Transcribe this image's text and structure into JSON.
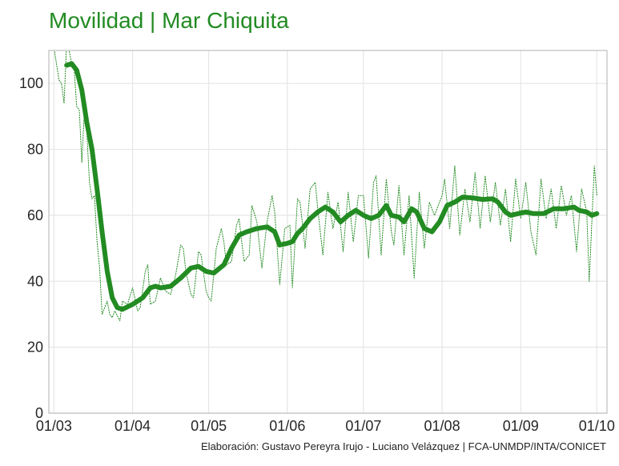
{
  "title": "Movilidad | Mar Chiquita",
  "caption": "Elaboración: Gustavo Pereyra Irujo - Luciano Velázquez | FCA-UNMDP/INTA/CONICET",
  "colors": {
    "line": "#228B22",
    "grid": "#e6e6e6",
    "frame": "#bdbdbd"
  },
  "chart_data": {
    "type": "line",
    "title": "Movilidad | Mar Chiquita",
    "xlabel": "",
    "ylabel": "",
    "grid": true,
    "xlim": [
      "2020-02-28",
      "2020-10-05"
    ],
    "ylim": [
      0,
      110
    ],
    "x_ticks": [
      {
        "x": "2020-03-01",
        "label": "01/03"
      },
      {
        "x": "2020-04-01",
        "label": "01/04"
      },
      {
        "x": "2020-05-01",
        "label": "01/05"
      },
      {
        "x": "2020-06-01",
        "label": "01/06"
      },
      {
        "x": "2020-07-01",
        "label": "01/07"
      },
      {
        "x": "2020-08-01",
        "label": "01/08"
      },
      {
        "x": "2020-09-01",
        "label": "01/09"
      },
      {
        "x": "2020-10-01",
        "label": "01/10"
      }
    ],
    "y_ticks": [
      0,
      20,
      40,
      60,
      80,
      100
    ],
    "series": [
      {
        "style": "thick-solid",
        "points": [
          [
            "2020-03-06",
            105.5
          ],
          [
            "2020-03-08",
            106
          ],
          [
            "2020-03-10",
            104
          ],
          [
            "2020-03-12",
            98
          ],
          [
            "2020-03-14",
            88
          ],
          [
            "2020-03-16",
            80
          ],
          [
            "2020-03-18",
            68
          ],
          [
            "2020-03-20",
            55
          ],
          [
            "2020-03-22",
            43
          ],
          [
            "2020-03-24",
            35
          ],
          [
            "2020-03-26",
            32
          ],
          [
            "2020-03-28",
            31.5
          ],
          [
            "2020-04-01",
            33
          ],
          [
            "2020-04-05",
            35
          ],
          [
            "2020-04-08",
            38
          ],
          [
            "2020-04-10",
            38.5
          ],
          [
            "2020-04-12",
            38
          ],
          [
            "2020-04-16",
            38.5
          ],
          [
            "2020-04-20",
            41
          ],
          [
            "2020-04-24",
            44
          ],
          [
            "2020-04-27",
            44.5
          ],
          [
            "2020-04-30",
            43
          ],
          [
            "2020-05-03",
            42.5
          ],
          [
            "2020-05-07",
            45
          ],
          [
            "2020-05-10",
            50
          ],
          [
            "2020-05-13",
            54
          ],
          [
            "2020-05-16",
            55
          ],
          [
            "2020-05-20",
            56
          ],
          [
            "2020-05-24",
            56.5
          ],
          [
            "2020-05-27",
            55
          ],
          [
            "2020-05-29",
            51
          ],
          [
            "2020-06-01",
            51.5
          ],
          [
            "2020-06-03",
            52
          ],
          [
            "2020-06-05",
            54.5
          ],
          [
            "2020-06-07",
            56
          ],
          [
            "2020-06-10",
            59
          ],
          [
            "2020-06-13",
            61
          ],
          [
            "2020-06-16",
            62.5
          ],
          [
            "2020-06-19",
            61
          ],
          [
            "2020-06-22",
            58
          ],
          [
            "2020-06-25",
            60
          ],
          [
            "2020-06-28",
            61.5
          ],
          [
            "2020-07-01",
            60
          ],
          [
            "2020-07-04",
            59
          ],
          [
            "2020-07-07",
            60
          ],
          [
            "2020-07-10",
            63
          ],
          [
            "2020-07-12",
            60
          ],
          [
            "2020-07-15",
            59.5
          ],
          [
            "2020-07-17",
            58
          ],
          [
            "2020-07-20",
            62
          ],
          [
            "2020-07-22",
            61
          ],
          [
            "2020-07-25",
            56
          ],
          [
            "2020-07-28",
            55
          ],
          [
            "2020-07-31",
            58
          ],
          [
            "2020-08-03",
            63
          ],
          [
            "2020-08-06",
            64
          ],
          [
            "2020-08-09",
            65.5
          ],
          [
            "2020-08-13",
            65.3
          ],
          [
            "2020-08-17",
            64.8
          ],
          [
            "2020-08-21",
            65
          ],
          [
            "2020-08-23",
            64
          ],
          [
            "2020-08-26",
            61
          ],
          [
            "2020-08-28",
            60
          ],
          [
            "2020-08-31",
            60.5
          ],
          [
            "2020-09-03",
            61
          ],
          [
            "2020-09-06",
            60.5
          ],
          [
            "2020-09-10",
            60.5
          ],
          [
            "2020-09-14",
            62
          ],
          [
            "2020-09-18",
            62
          ],
          [
            "2020-09-22",
            62.5
          ],
          [
            "2020-09-24",
            61.5
          ],
          [
            "2020-09-27",
            61
          ],
          [
            "2020-09-29",
            60
          ],
          [
            "2020-10-01",
            60.5
          ]
        ]
      },
      {
        "style": "thin-dotted",
        "points": [
          [
            "2020-03-01",
            111
          ],
          [
            "2020-03-03",
            101
          ],
          [
            "2020-03-04",
            100
          ],
          [
            "2020-03-05",
            94
          ],
          [
            "2020-03-06",
            112
          ],
          [
            "2020-03-07",
            110
          ],
          [
            "2020-03-08",
            106
          ],
          [
            "2020-03-09",
            104
          ],
          [
            "2020-03-10",
            93
          ],
          [
            "2020-03-11",
            92
          ],
          [
            "2020-03-12",
            76
          ],
          [
            "2020-03-13",
            92
          ],
          [
            "2020-03-14",
            85
          ],
          [
            "2020-03-15",
            70
          ],
          [
            "2020-03-16",
            65
          ],
          [
            "2020-03-17",
            66
          ],
          [
            "2020-03-18",
            52
          ],
          [
            "2020-03-19",
            44
          ],
          [
            "2020-03-20",
            30
          ],
          [
            "2020-03-21",
            32
          ],
          [
            "2020-03-22",
            34
          ],
          [
            "2020-03-23",
            30
          ],
          [
            "2020-03-24",
            29
          ],
          [
            "2020-03-25",
            31
          ],
          [
            "2020-03-27",
            28
          ],
          [
            "2020-03-28",
            34
          ],
          [
            "2020-03-30",
            33
          ],
          [
            "2020-04-01",
            38
          ],
          [
            "2020-04-03",
            31
          ],
          [
            "2020-04-04",
            32
          ],
          [
            "2020-04-06",
            43
          ],
          [
            "2020-04-07",
            45
          ],
          [
            "2020-04-08",
            33
          ],
          [
            "2020-04-10",
            34
          ],
          [
            "2020-04-12",
            41
          ],
          [
            "2020-04-14",
            37
          ],
          [
            "2020-04-16",
            36
          ],
          [
            "2020-04-18",
            42
          ],
          [
            "2020-04-20",
            51
          ],
          [
            "2020-04-21",
            50
          ],
          [
            "2020-04-22",
            43
          ],
          [
            "2020-04-24",
            36
          ],
          [
            "2020-04-25",
            35
          ],
          [
            "2020-04-27",
            49
          ],
          [
            "2020-04-28",
            48
          ],
          [
            "2020-04-30",
            37
          ],
          [
            "2020-05-01",
            35
          ],
          [
            "2020-05-02",
            34
          ],
          [
            "2020-05-04",
            50
          ],
          [
            "2020-05-06",
            56
          ],
          [
            "2020-05-07",
            52
          ],
          [
            "2020-05-08",
            45
          ],
          [
            "2020-05-10",
            46
          ],
          [
            "2020-05-12",
            57
          ],
          [
            "2020-05-13",
            59
          ],
          [
            "2020-05-14",
            52
          ],
          [
            "2020-05-15",
            46
          ],
          [
            "2020-05-17",
            48
          ],
          [
            "2020-05-18",
            63
          ],
          [
            "2020-05-20",
            58
          ],
          [
            "2020-05-22",
            44
          ],
          [
            "2020-05-24",
            58
          ],
          [
            "2020-05-26",
            66
          ],
          [
            "2020-05-27",
            61
          ],
          [
            "2020-05-29",
            39
          ],
          [
            "2020-05-31",
            56
          ],
          [
            "2020-06-02",
            57
          ],
          [
            "2020-06-03",
            38
          ],
          [
            "2020-06-05",
            65
          ],
          [
            "2020-06-06",
            64
          ],
          [
            "2020-06-08",
            50
          ],
          [
            "2020-06-10",
            68
          ],
          [
            "2020-06-12",
            70
          ],
          [
            "2020-06-13",
            62
          ],
          [
            "2020-06-15",
            48
          ],
          [
            "2020-06-17",
            67
          ],
          [
            "2020-06-19",
            56
          ],
          [
            "2020-06-21",
            64
          ],
          [
            "2020-06-23",
            49
          ],
          [
            "2020-06-25",
            67
          ],
          [
            "2020-06-27",
            52
          ],
          [
            "2020-06-29",
            66
          ],
          [
            "2020-07-01",
            66
          ],
          [
            "2020-07-03",
            47
          ],
          [
            "2020-07-05",
            70
          ],
          [
            "2020-07-06",
            72
          ],
          [
            "2020-07-08",
            48
          ],
          [
            "2020-07-10",
            71
          ],
          [
            "2020-07-12",
            55
          ],
          [
            "2020-07-13",
            51
          ],
          [
            "2020-07-15",
            69
          ],
          [
            "2020-07-17",
            48
          ],
          [
            "2020-07-19",
            66
          ],
          [
            "2020-07-21",
            41
          ],
          [
            "2020-07-23",
            67
          ],
          [
            "2020-07-25",
            50
          ],
          [
            "2020-07-27",
            64
          ],
          [
            "2020-07-29",
            60
          ],
          [
            "2020-08-01",
            66
          ],
          [
            "2020-08-02",
            71
          ],
          [
            "2020-08-04",
            56
          ],
          [
            "2020-08-06",
            75
          ],
          [
            "2020-08-08",
            54
          ],
          [
            "2020-08-10",
            68
          ],
          [
            "2020-08-12",
            58
          ],
          [
            "2020-08-14",
            73
          ],
          [
            "2020-08-16",
            56
          ],
          [
            "2020-08-18",
            72
          ],
          [
            "2020-08-20",
            58
          ],
          [
            "2020-08-22",
            70
          ],
          [
            "2020-08-24",
            57
          ],
          [
            "2020-08-26",
            68
          ],
          [
            "2020-08-28",
            52
          ],
          [
            "2020-08-30",
            71
          ],
          [
            "2020-09-01",
            59
          ],
          [
            "2020-09-03",
            70
          ],
          [
            "2020-09-05",
            55
          ],
          [
            "2020-09-07",
            48
          ],
          [
            "2020-09-09",
            71
          ],
          [
            "2020-09-11",
            59
          ],
          [
            "2020-09-13",
            68
          ],
          [
            "2020-09-15",
            56
          ],
          [
            "2020-09-17",
            69
          ],
          [
            "2020-09-19",
            60
          ],
          [
            "2020-09-21",
            66
          ],
          [
            "2020-09-23",
            49
          ],
          [
            "2020-09-25",
            68
          ],
          [
            "2020-09-27",
            61
          ],
          [
            "2020-09-28",
            40
          ],
          [
            "2020-09-30",
            75
          ],
          [
            "2020-10-01",
            66
          ]
        ]
      }
    ]
  }
}
